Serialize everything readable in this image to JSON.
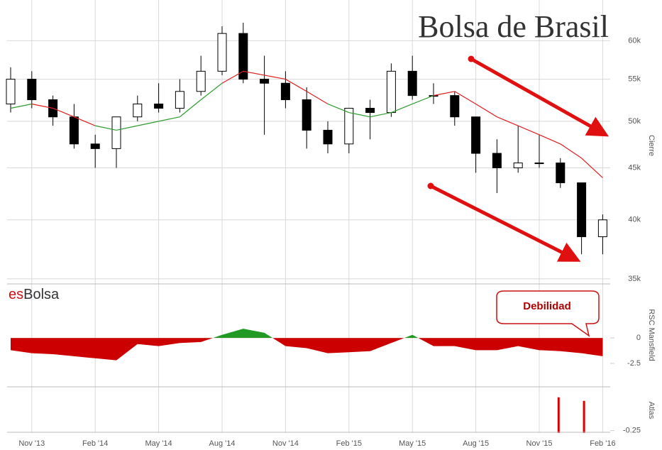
{
  "chart_data": [
    {
      "type": "candlestick",
      "title": "Bolsa de Brasil",
      "brand_prefix": "es",
      "brand_name": "Bolsa",
      "y_label": "Cierre",
      "annotation": "Debilidad",
      "log_scale": true,
      "grid": true,
      "x": [
        "2013-10",
        "2013-11",
        "2013-12",
        "2014-01",
        "2014-02",
        "2014-03",
        "2014-04",
        "2014-05",
        "2014-06",
        "2014-07",
        "2014-08",
        "2014-09",
        "2014-10",
        "2014-11",
        "2014-12",
        "2015-01",
        "2015-02",
        "2015-03",
        "2015-04",
        "2015-05",
        "2015-06",
        "2015-07",
        "2015-08",
        "2015-09",
        "2015-10",
        "2015-11",
        "2015-12",
        "2016-01",
        "2016-02"
      ],
      "xticks": [
        {
          "value": "2013-11",
          "label": "Nov '13"
        },
        {
          "value": "2014-02",
          "label": "Feb '14"
        },
        {
          "value": "2014-05",
          "label": "May '14"
        },
        {
          "value": "2014-08",
          "label": "Aug '14"
        },
        {
          "value": "2014-11",
          "label": "Nov '14"
        },
        {
          "value": "2015-02",
          "label": "Feb '15"
        },
        {
          "value": "2015-05",
          "label": "May '15"
        },
        {
          "value": "2015-08",
          "label": "Aug '15"
        },
        {
          "value": "2015-11",
          "label": "Nov '15"
        },
        {
          "value": "2016-02",
          "label": "Feb '16"
        }
      ],
      "open": [
        52000,
        55000,
        52500,
        50500,
        47500,
        47000,
        50500,
        52000,
        51500,
        53500,
        56000,
        61000,
        55000,
        54500,
        52500,
        49000,
        47500,
        51500,
        51000,
        56000,
        53000,
        53000,
        50500,
        46500,
        45000,
        45500,
        45500,
        43500,
        38500
      ],
      "high": [
        56500,
        56000,
        53000,
        52000,
        48500,
        50500,
        53000,
        54500,
        55000,
        58000,
        62000,
        62500,
        58000,
        56000,
        54000,
        50000,
        51500,
        52500,
        57000,
        58000,
        54500,
        53500,
        50500,
        48000,
        49500,
        48500,
        46000,
        43500,
        40500
      ],
      "low": [
        51000,
        51500,
        49500,
        47000,
        45000,
        45000,
        50000,
        51000,
        51000,
        53000,
        55500,
        54500,
        48500,
        51500,
        47000,
        46500,
        46500,
        48000,
        50500,
        52500,
        52000,
        49500,
        44500,
        42500,
        44500,
        45000,
        43000,
        37000,
        37000
      ],
      "close": [
        55000,
        52500,
        50500,
        47500,
        47000,
        50500,
        52000,
        51500,
        53500,
        56000,
        61000,
        55000,
        54500,
        52500,
        49000,
        47500,
        51500,
        51000,
        56000,
        53000,
        53000,
        50500,
        46500,
        45000,
        45500,
        45500,
        43500,
        38500,
        40000
      ],
      "up_color": "#ffffff",
      "down_color": "#000000",
      "ma": [
        51500,
        52000,
        51500,
        50500,
        49500,
        49000,
        49500,
        50000,
        50500,
        52500,
        54500,
        56000,
        55500,
        55000,
        53500,
        52000,
        51000,
        50500,
        51000,
        52000,
        53000,
        53500,
        52000,
        50500,
        49500,
        48500,
        47500,
        46000,
        44000
      ],
      "ma_above_color": "#2e9b2e",
      "ma_below_color": "#e02020",
      "ylim": [
        34600,
        65800
      ],
      "yticks": [
        {
          "value": 35000,
          "label": "35k"
        },
        {
          "value": 40000,
          "label": "40k"
        },
        {
          "value": 45000,
          "label": "45k"
        },
        {
          "value": 50000,
          "label": "50k"
        },
        {
          "value": 55000,
          "label": "55k"
        },
        {
          "value": 60000,
          "label": "60k"
        }
      ]
    },
    {
      "type": "area",
      "y_label": "RSC Mansfield",
      "pos_color": "#229922",
      "neg_color": "#cc0000",
      "values": [
        -1.2,
        -1.5,
        -1.6,
        -1.8,
        -2.0,
        -2.2,
        -0.6,
        -0.8,
        -0.5,
        -0.4,
        0.3,
        0.9,
        0.5,
        -0.8,
        -1.0,
        -1.5,
        -1.4,
        -1.3,
        -0.5,
        0.3,
        -0.8,
        -0.8,
        -1.2,
        -1.2,
        -0.8,
        -1.2,
        -1.3,
        -1.5,
        -1.8
      ],
      "ylim": [
        -4.8,
        5.3
      ],
      "yticks": [
        {
          "value": -2.5,
          "label": "-2.5"
        },
        0
      ]
    },
    {
      "type": "bar",
      "y_label": "Atlas",
      "color": "#dd0000",
      "values": [
        null,
        null,
        null,
        null,
        null,
        null,
        null,
        null,
        null,
        null,
        null,
        null,
        null,
        null,
        null,
        null,
        null,
        null,
        null,
        null,
        null,
        null,
        null,
        null,
        null,
        null,
        0.03,
        0.0,
        null
      ],
      "ylim": [
        -0.27,
        0.1
      ],
      "yticks": [
        {
          "value": -0.25,
          "label": "-0.25"
        }
      ]
    }
  ]
}
